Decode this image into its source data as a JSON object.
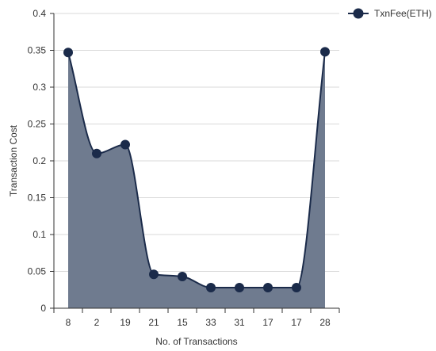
{
  "chart_data": {
    "type": "area",
    "title": "",
    "xlabel": "No. of Transactions",
    "ylabel": "Transaction Cost",
    "categories": [
      "8",
      "2",
      "19",
      "21",
      "15",
      "33",
      "31",
      "17",
      "17",
      "28"
    ],
    "series": [
      {
        "name": "TxnFee(ETH)",
        "values": [
          0.347,
          0.21,
          0.222,
          0.046,
          0.043,
          0.028,
          0.028,
          0.028,
          0.028,
          0.348
        ],
        "color": "#1b2b4a",
        "fill": "#6f7b8f"
      }
    ],
    "ylim": [
      0,
      0.4
    ],
    "yticks": [
      "0",
      "0.05",
      "0.1",
      "0.15",
      "0.2",
      "0.25",
      "0.3",
      "0.35",
      "0.4"
    ],
    "grid": true,
    "legend": "top-right"
  }
}
